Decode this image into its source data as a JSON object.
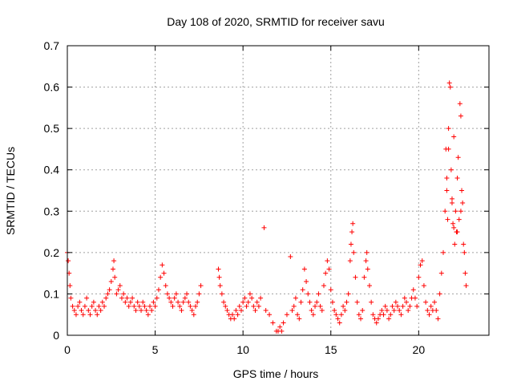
{
  "chart_data": {
    "type": "scatter",
    "title": "Day 108 of 2020, SRMTID for receiver savu",
    "xlabel": "GPS time / hours",
    "ylabel": "SRMTID / TECUs",
    "xlim": [
      0,
      24
    ],
    "ylim": [
      0,
      0.7
    ],
    "x_ticks": [
      0,
      5,
      10,
      15,
      20
    ],
    "x_tick_labels": [
      "0",
      "5",
      "10",
      "15",
      "20"
    ],
    "y_ticks": [
      0,
      0.1,
      0.2,
      0.3,
      0.4,
      0.5,
      0.6,
      0.7
    ],
    "y_tick_labels": [
      "0",
      "0.1",
      "0.2",
      "0.3",
      "0.4",
      "0.5",
      "0.6",
      "0.7"
    ],
    "grid": true,
    "marker": "plus",
    "marker_color": "#ff0000",
    "series": [
      {
        "name": "SRMTID",
        "points": [
          [
            0.0,
            0.2
          ],
          [
            0.05,
            0.18
          ],
          [
            0.1,
            0.15
          ],
          [
            0.15,
            0.12
          ],
          [
            0.2,
            0.09
          ],
          [
            0.3,
            0.07
          ],
          [
            0.4,
            0.06
          ],
          [
            0.5,
            0.05
          ],
          [
            0.6,
            0.07
          ],
          [
            0.7,
            0.08
          ],
          [
            0.8,
            0.06
          ],
          [
            0.9,
            0.05
          ],
          [
            1.0,
            0.07
          ],
          [
            1.1,
            0.09
          ],
          [
            1.2,
            0.06
          ],
          [
            1.3,
            0.05
          ],
          [
            1.4,
            0.07
          ],
          [
            1.5,
            0.08
          ],
          [
            1.6,
            0.06
          ],
          [
            1.7,
            0.05
          ],
          [
            1.8,
            0.07
          ],
          [
            1.9,
            0.06
          ],
          [
            2.0,
            0.08
          ],
          [
            2.1,
            0.07
          ],
          [
            2.2,
            0.09
          ],
          [
            2.3,
            0.1
          ],
          [
            2.4,
            0.11
          ],
          [
            2.5,
            0.13
          ],
          [
            2.6,
            0.16
          ],
          [
            2.65,
            0.18
          ],
          [
            2.7,
            0.14
          ],
          [
            2.8,
            0.1
          ],
          [
            2.9,
            0.11
          ],
          [
            3.0,
            0.12
          ],
          [
            3.1,
            0.09
          ],
          [
            3.2,
            0.1
          ],
          [
            3.3,
            0.08
          ],
          [
            3.4,
            0.09
          ],
          [
            3.5,
            0.07
          ],
          [
            3.6,
            0.08
          ],
          [
            3.7,
            0.09
          ],
          [
            3.8,
            0.07
          ],
          [
            3.9,
            0.06
          ],
          [
            4.0,
            0.08
          ],
          [
            4.1,
            0.07
          ],
          [
            4.2,
            0.06
          ],
          [
            4.3,
            0.08
          ],
          [
            4.4,
            0.07
          ],
          [
            4.5,
            0.06
          ],
          [
            4.6,
            0.05
          ],
          [
            4.7,
            0.07
          ],
          [
            4.8,
            0.06
          ],
          [
            4.9,
            0.08
          ],
          [
            5.0,
            0.07
          ],
          [
            5.1,
            0.09
          ],
          [
            5.2,
            0.11
          ],
          [
            5.3,
            0.14
          ],
          [
            5.4,
            0.17
          ],
          [
            5.5,
            0.15
          ],
          [
            5.6,
            0.12
          ],
          [
            5.7,
            0.1
          ],
          [
            5.8,
            0.09
          ],
          [
            5.9,
            0.08
          ],
          [
            6.0,
            0.07
          ],
          [
            6.1,
            0.09
          ],
          [
            6.2,
            0.1
          ],
          [
            6.3,
            0.08
          ],
          [
            6.4,
            0.07
          ],
          [
            6.5,
            0.06
          ],
          [
            6.6,
            0.08
          ],
          [
            6.7,
            0.09
          ],
          [
            6.8,
            0.1
          ],
          [
            6.9,
            0.08
          ],
          [
            7.0,
            0.07
          ],
          [
            7.1,
            0.06
          ],
          [
            7.2,
            0.05
          ],
          [
            7.3,
            0.07
          ],
          [
            7.4,
            0.08
          ],
          [
            7.5,
            0.1
          ],
          [
            7.6,
            0.12
          ],
          [
            8.6,
            0.16
          ],
          [
            8.65,
            0.14
          ],
          [
            8.7,
            0.12
          ],
          [
            8.8,
            0.1
          ],
          [
            8.9,
            0.08
          ],
          [
            9.0,
            0.07
          ],
          [
            9.1,
            0.06
          ],
          [
            9.2,
            0.05
          ],
          [
            9.3,
            0.04
          ],
          [
            9.4,
            0.05
          ],
          [
            9.5,
            0.04
          ],
          [
            9.6,
            0.06
          ],
          [
            9.7,
            0.05
          ],
          [
            9.8,
            0.07
          ],
          [
            9.9,
            0.06
          ],
          [
            10.0,
            0.08
          ],
          [
            10.1,
            0.09
          ],
          [
            10.2,
            0.07
          ],
          [
            10.3,
            0.08
          ],
          [
            10.4,
            0.1
          ],
          [
            10.5,
            0.09
          ],
          [
            10.6,
            0.07
          ],
          [
            10.7,
            0.06
          ],
          [
            10.8,
            0.08
          ],
          [
            10.9,
            0.07
          ],
          [
            11.0,
            0.09
          ],
          [
            11.2,
            0.26
          ],
          [
            11.3,
            0.06
          ],
          [
            11.5,
            0.05
          ],
          [
            11.7,
            0.03
          ],
          [
            11.9,
            0.01
          ],
          [
            12.0,
            0.01
          ],
          [
            12.1,
            0.02
          ],
          [
            12.2,
            0.01
          ],
          [
            12.3,
            0.03
          ],
          [
            12.5,
            0.05
          ],
          [
            12.7,
            0.19
          ],
          [
            12.8,
            0.06
          ],
          [
            12.9,
            0.07
          ],
          [
            13.0,
            0.09
          ],
          [
            13.1,
            0.05
          ],
          [
            13.2,
            0.04
          ],
          [
            13.3,
            0.08
          ],
          [
            13.4,
            0.11
          ],
          [
            13.5,
            0.16
          ],
          [
            13.6,
            0.13
          ],
          [
            13.7,
            0.1
          ],
          [
            13.8,
            0.08
          ],
          [
            13.9,
            0.06
          ],
          [
            14.0,
            0.05
          ],
          [
            14.1,
            0.07
          ],
          [
            14.2,
            0.08
          ],
          [
            14.3,
            0.1
          ],
          [
            14.4,
            0.07
          ],
          [
            14.5,
            0.06
          ],
          [
            14.6,
            0.12
          ],
          [
            14.7,
            0.15
          ],
          [
            14.8,
            0.18
          ],
          [
            14.9,
            0.16
          ],
          [
            15.0,
            0.11
          ],
          [
            15.1,
            0.08
          ],
          [
            15.2,
            0.06
          ],
          [
            15.3,
            0.05
          ],
          [
            15.4,
            0.04
          ],
          [
            15.5,
            0.03
          ],
          [
            15.6,
            0.05
          ],
          [
            15.7,
            0.07
          ],
          [
            15.8,
            0.06
          ],
          [
            15.9,
            0.08
          ],
          [
            16.0,
            0.1
          ],
          [
            16.1,
            0.18
          ],
          [
            16.15,
            0.22
          ],
          [
            16.2,
            0.25
          ],
          [
            16.25,
            0.27
          ],
          [
            16.3,
            0.2
          ],
          [
            16.4,
            0.14
          ],
          [
            16.5,
            0.08
          ],
          [
            16.6,
            0.05
          ],
          [
            16.7,
            0.04
          ],
          [
            16.8,
            0.06
          ],
          [
            16.9,
            0.14
          ],
          [
            17.0,
            0.18
          ],
          [
            17.05,
            0.2
          ],
          [
            17.1,
            0.16
          ],
          [
            17.2,
            0.12
          ],
          [
            17.3,
            0.08
          ],
          [
            17.4,
            0.05
          ],
          [
            17.5,
            0.04
          ],
          [
            17.6,
            0.03
          ],
          [
            17.7,
            0.04
          ],
          [
            17.8,
            0.05
          ],
          [
            17.9,
            0.06
          ],
          [
            18.0,
            0.05
          ],
          [
            18.1,
            0.07
          ],
          [
            18.2,
            0.06
          ],
          [
            18.3,
            0.04
          ],
          [
            18.4,
            0.05
          ],
          [
            18.5,
            0.07
          ],
          [
            18.6,
            0.06
          ],
          [
            18.7,
            0.08
          ],
          [
            18.8,
            0.07
          ],
          [
            18.9,
            0.06
          ],
          [
            19.0,
            0.05
          ],
          [
            19.1,
            0.07
          ],
          [
            19.2,
            0.09
          ],
          [
            19.3,
            0.08
          ],
          [
            19.4,
            0.06
          ],
          [
            19.5,
            0.07
          ],
          [
            19.6,
            0.09
          ],
          [
            19.7,
            0.11
          ],
          [
            19.8,
            0.09
          ],
          [
            19.9,
            0.07
          ],
          [
            20.0,
            0.14
          ],
          [
            20.1,
            0.17
          ],
          [
            20.2,
            0.18
          ],
          [
            20.3,
            0.12
          ],
          [
            20.4,
            0.08
          ],
          [
            20.5,
            0.06
          ],
          [
            20.6,
            0.05
          ],
          [
            20.7,
            0.07
          ],
          [
            20.8,
            0.06
          ],
          [
            20.9,
            0.08
          ],
          [
            21.0,
            0.06
          ],
          [
            21.1,
            0.04
          ],
          [
            21.2,
            0.1
          ],
          [
            21.3,
            0.15
          ],
          [
            21.4,
            0.2
          ],
          [
            21.5,
            0.3
          ],
          [
            21.55,
            0.45
          ],
          [
            21.6,
            0.35
          ],
          [
            21.65,
            0.28
          ],
          [
            21.7,
            0.5
          ],
          [
            21.75,
            0.61
          ],
          [
            21.8,
            0.6
          ],
          [
            21.85,
            0.4
          ],
          [
            21.9,
            0.33
          ],
          [
            21.95,
            0.27
          ],
          [
            22.0,
            0.48
          ],
          [
            22.05,
            0.22
          ],
          [
            22.1,
            0.3
          ],
          [
            22.15,
            0.25
          ],
          [
            22.2,
            0.38
          ],
          [
            22.25,
            0.43
          ],
          [
            22.3,
            0.28
          ],
          [
            22.35,
            0.56
          ],
          [
            22.4,
            0.53
          ],
          [
            22.45,
            0.35
          ],
          [
            22.5,
            0.32
          ],
          [
            22.55,
            0.22
          ],
          [
            22.6,
            0.2
          ],
          [
            22.65,
            0.15
          ],
          [
            22.7,
            0.12
          ],
          [
            21.7,
            0.45
          ],
          [
            21.9,
            0.32
          ],
          [
            22.0,
            0.26
          ],
          [
            22.2,
            0.25
          ],
          [
            21.6,
            0.38
          ],
          [
            22.4,
            0.3
          ]
        ]
      }
    ]
  }
}
